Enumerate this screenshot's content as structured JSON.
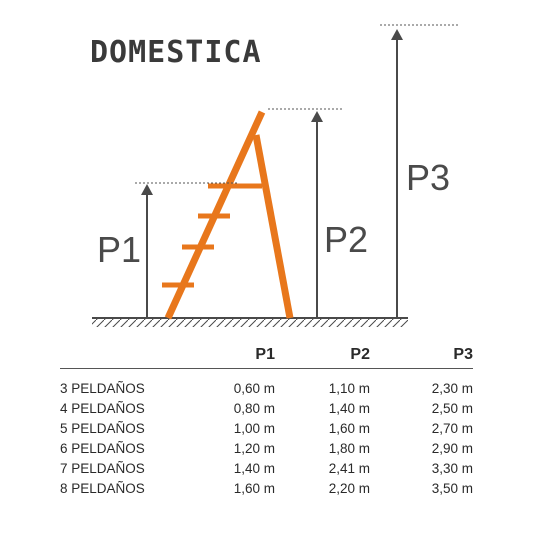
{
  "diagram": {
    "title": "DOMESTICA",
    "labels": {
      "p1": "P1",
      "p2": "P2",
      "p3": "P3"
    },
    "colors": {
      "ladder": "#e8771c",
      "arrow": "#4a4a4a",
      "ground": "#4a4a4a"
    }
  },
  "table": {
    "headers": [
      "",
      "P1",
      "P2",
      "P3"
    ],
    "rows": [
      {
        "label": "3 PELDAÑOS",
        "p1": "0,60 m",
        "p2": "1,10 m",
        "p3": "2,30 m"
      },
      {
        "label": "4 PELDAÑOS",
        "p1": "0,80 m",
        "p2": "1,40 m",
        "p3": "2,50 m"
      },
      {
        "label": "5 PELDAÑOS",
        "p1": "1,00 m",
        "p2": "1,60 m",
        "p3": "2,70 m"
      },
      {
        "label": "6 PELDAÑOS",
        "p1": "1,20 m",
        "p2": "1,80 m",
        "p3": "2,90 m"
      },
      {
        "label": "7 PELDAÑOS",
        "p1": "1,40 m",
        "p2": "2,41 m",
        "p3": "3,30 m"
      },
      {
        "label": "8 PELDAÑOS",
        "p1": "1,60 m",
        "p2": "2,20 m",
        "p3": "3,50 m"
      }
    ]
  }
}
